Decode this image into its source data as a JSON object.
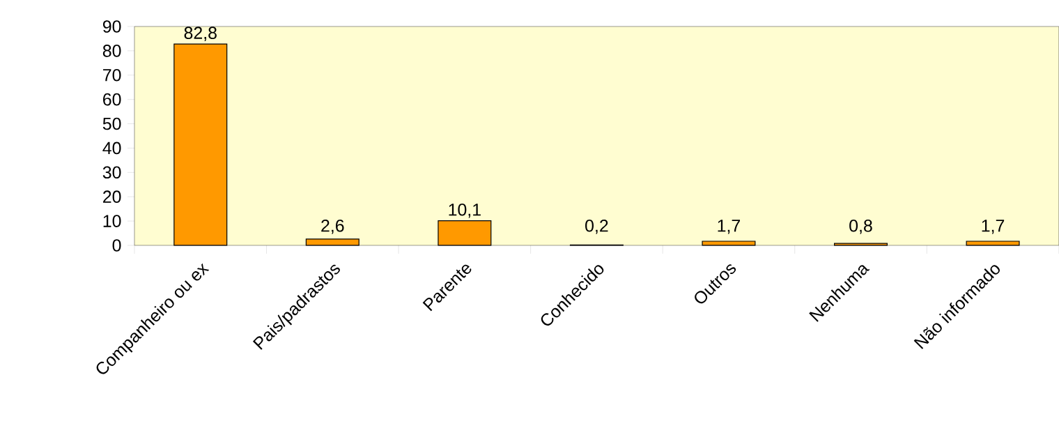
{
  "chart_data": {
    "type": "bar",
    "categories": [
      "Companheiro ou ex",
      "Pais/padrastos",
      "Parente",
      "Conhecido",
      "Outros",
      "Nenhuma",
      "Não informado"
    ],
    "values": [
      82.8,
      2.6,
      10.1,
      0.2,
      1.7,
      0.8,
      1.7
    ],
    "value_labels": [
      "82,8",
      "2,6",
      "10,1",
      "0,2",
      "1,7",
      "0,8",
      "1,7"
    ],
    "color": "#ff9900",
    "ylim": [
      0,
      90
    ],
    "yticks": [
      0,
      10,
      20,
      30,
      40,
      50,
      60,
      70,
      80,
      90
    ]
  }
}
